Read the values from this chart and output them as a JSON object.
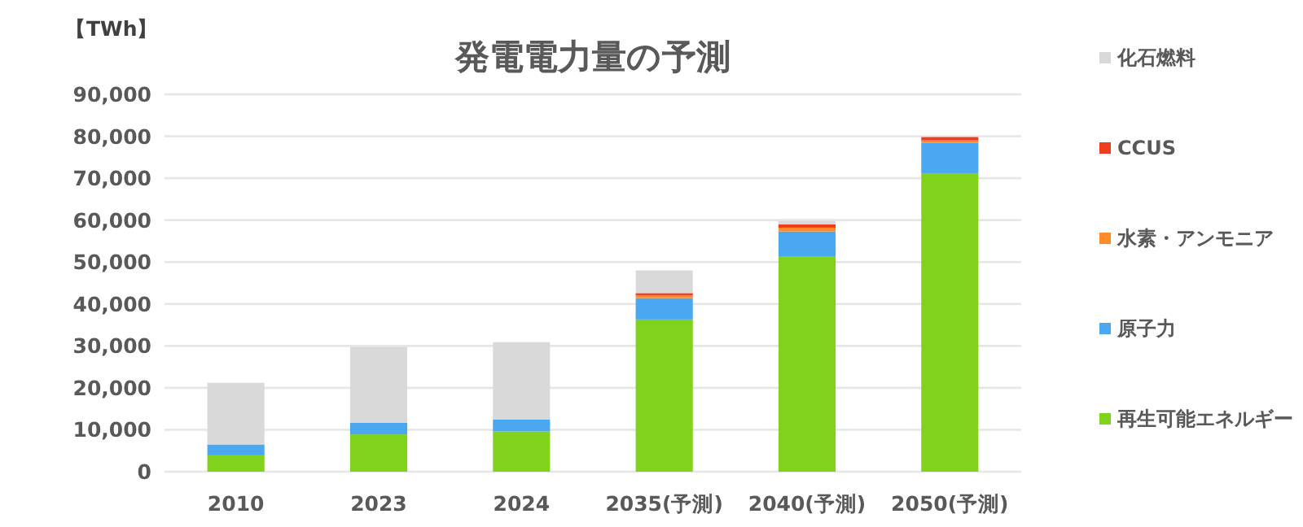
{
  "chart_data": {
    "type": "bar",
    "title": "発電電力量の予測",
    "ylabel": "【TWh】",
    "categories": [
      "2010",
      "2023",
      "2024",
      "2035(予測)",
      "2040(予測)",
      "2050(予測)"
    ],
    "stacked": true,
    "ylim": [
      0,
      90000
    ],
    "yticks": [
      0,
      {
        "value": 10000,
        "label": "10,000"
      },
      {
        "value": 20000,
        "label": "20,000"
      },
      {
        "value": 30000,
        "label": "30,000"
      },
      {
        "value": 40000,
        "label": "40,000"
      },
      {
        "value": 50000,
        "label": "50,000"
      },
      {
        "value": 60000,
        "label": "60,000"
      },
      {
        "value": 70000,
        "label": "70,000"
      },
      {
        "value": 80000,
        "label": "80,000"
      },
      {
        "value": 90000,
        "label": "90,000"
      }
    ],
    "grid": "y",
    "legend": "right",
    "series": [
      {
        "name": "再生可能エネルギー",
        "color": "#80d31a",
        "values": [
          3900,
          8900,
          9600,
          36300,
          51400,
          71200
        ]
      },
      {
        "name": "原子力",
        "color": "#4aa8f0",
        "values": [
          2600,
          2800,
          2900,
          5100,
          5900,
          7200
        ]
      },
      {
        "name": "水素・アンモニア",
        "color": "#ff8c28",
        "values": [
          null,
          null,
          null,
          700,
          900,
          600
        ]
      },
      {
        "name": "CCUS",
        "color": "#f03c1e",
        "values": [
          null,
          null,
          null,
          500,
          800,
          800
        ]
      },
      {
        "name": "化石燃料",
        "color": "#d9d9d9",
        "values": [
          14700,
          18100,
          18400,
          5400,
          800,
          null
        ]
      }
    ]
  }
}
